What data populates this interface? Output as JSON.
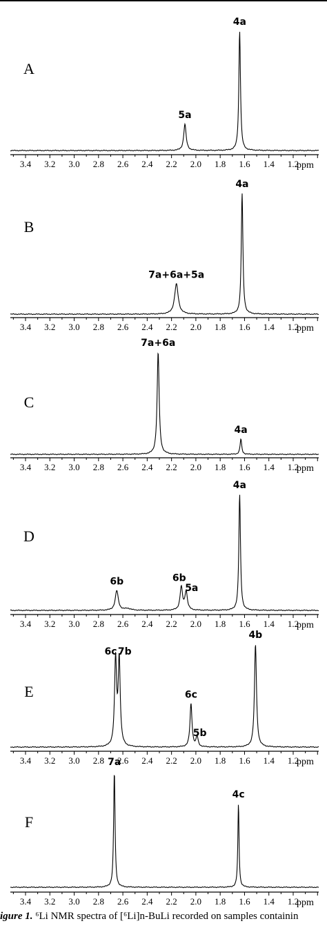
{
  "chart_data": [
    {
      "type": "line",
      "panel": "A",
      "x_ticks": [
        "3.4",
        "3.2",
        "3.0",
        "2.8",
        "2.6",
        "2.4",
        "2.2",
        "2.0",
        "1.8",
        "1.6",
        "1.4",
        "1.2"
      ],
      "x_unit": "ppm",
      "xlim": [
        3.5,
        1.05
      ],
      "x_reversed": true,
      "peaks": [
        {
          "label": "5a",
          "x": 2.09,
          "height": 0.22,
          "width": 0.012
        },
        {
          "label": "4a",
          "x": 1.64,
          "height": 1.0,
          "width": 0.008
        }
      ]
    },
    {
      "type": "line",
      "panel": "B",
      "x_ticks": [
        "3.4",
        "3.2",
        "3.0",
        "2.8",
        "2.6",
        "2.4",
        "2.2",
        "2.0",
        "1.8",
        "1.6",
        "1.4",
        "1.2"
      ],
      "x_unit": "ppm",
      "xlim": [
        3.5,
        1.05
      ],
      "x_reversed": true,
      "peaks": [
        {
          "label": "7a+6a+5a",
          "x": 2.16,
          "height": 0.25,
          "width": 0.018
        },
        {
          "label": "4a",
          "x": 1.62,
          "height": 1.0,
          "width": 0.008
        }
      ]
    },
    {
      "type": "line",
      "panel": "C",
      "x_ticks": [
        "3.4",
        "3.2",
        "3.0",
        "2.8",
        "2.6",
        "2.4",
        "2.2",
        "2.0",
        "1.8",
        "1.6",
        "1.4",
        "1.2"
      ],
      "x_unit": "ppm",
      "xlim": [
        3.5,
        1.05
      ],
      "x_reversed": true,
      "peaks": [
        {
          "label": "7a+6a",
          "x": 2.31,
          "height": 1.0,
          "width": 0.01
        },
        {
          "label": "4a",
          "x": 1.63,
          "height": 0.15,
          "width": 0.008
        }
      ]
    },
    {
      "type": "line",
      "panel": "D",
      "x_ticks": [
        "3.4",
        "3.2",
        "3.0",
        "2.8",
        "2.6",
        "2.4",
        "2.2",
        "2.0",
        "1.8",
        "1.6",
        "1.4",
        "1.2"
      ],
      "x_unit": "ppm",
      "xlim": [
        3.5,
        1.05
      ],
      "x_reversed": true,
      "peaks": [
        {
          "label": "6b",
          "x": 2.65,
          "height": 0.17,
          "width": 0.015
        },
        {
          "label": "",
          "x": 2.56,
          "height": 0.015,
          "width": 0.03
        },
        {
          "label": "6b",
          "x": 2.12,
          "height": 0.2,
          "width": 0.012
        },
        {
          "label": "5a",
          "x": 2.08,
          "height": 0.16,
          "width": 0.012
        },
        {
          "label": "4a",
          "x": 1.64,
          "height": 1.0,
          "width": 0.008
        }
      ]
    },
    {
      "type": "line",
      "panel": "E",
      "x_ticks": [
        "3.4",
        "3.2",
        "3.0",
        "2.8",
        "2.6",
        "2.4",
        "2.2",
        "2.0",
        "1.8",
        "1.6",
        "1.4",
        "1.2"
      ],
      "x_unit": "ppm",
      "xlim": [
        3.5,
        1.05
      ],
      "x_reversed": true,
      "peaks": [
        {
          "label": "6c",
          "x": 2.66,
          "height": 0.84,
          "width": 0.01
        },
        {
          "label": "7b",
          "x": 2.63,
          "height": 0.84,
          "width": 0.01
        },
        {
          "label": "6c",
          "x": 2.04,
          "height": 0.42,
          "width": 0.01
        },
        {
          "label": "5b",
          "x": 1.99,
          "height": 0.1,
          "width": 0.01
        },
        {
          "label": "4b",
          "x": 1.51,
          "height": 1.0,
          "width": 0.01
        }
      ]
    },
    {
      "type": "line",
      "panel": "F",
      "x_ticks": [
        "3.4",
        "3.2",
        "3.0",
        "2.8",
        "2.6",
        "2.4",
        "2.2",
        "2.0",
        "1.8",
        "1.6",
        "1.4",
        "1.2"
      ],
      "x_unit": "ppm",
      "xlim": [
        3.5,
        1.05
      ],
      "x_reversed": true,
      "peaks": [
        {
          "label": "7a",
          "x": 2.67,
          "height": 1.0,
          "width": 0.007
        },
        {
          "label": "4c",
          "x": 1.65,
          "height": 0.72,
          "width": 0.006
        }
      ]
    }
  ],
  "caption": {
    "fig_label": "igure 1.",
    "text": "⁶Li NMR spectra of [⁶Li]n-BuLi recorded on samples containin"
  }
}
